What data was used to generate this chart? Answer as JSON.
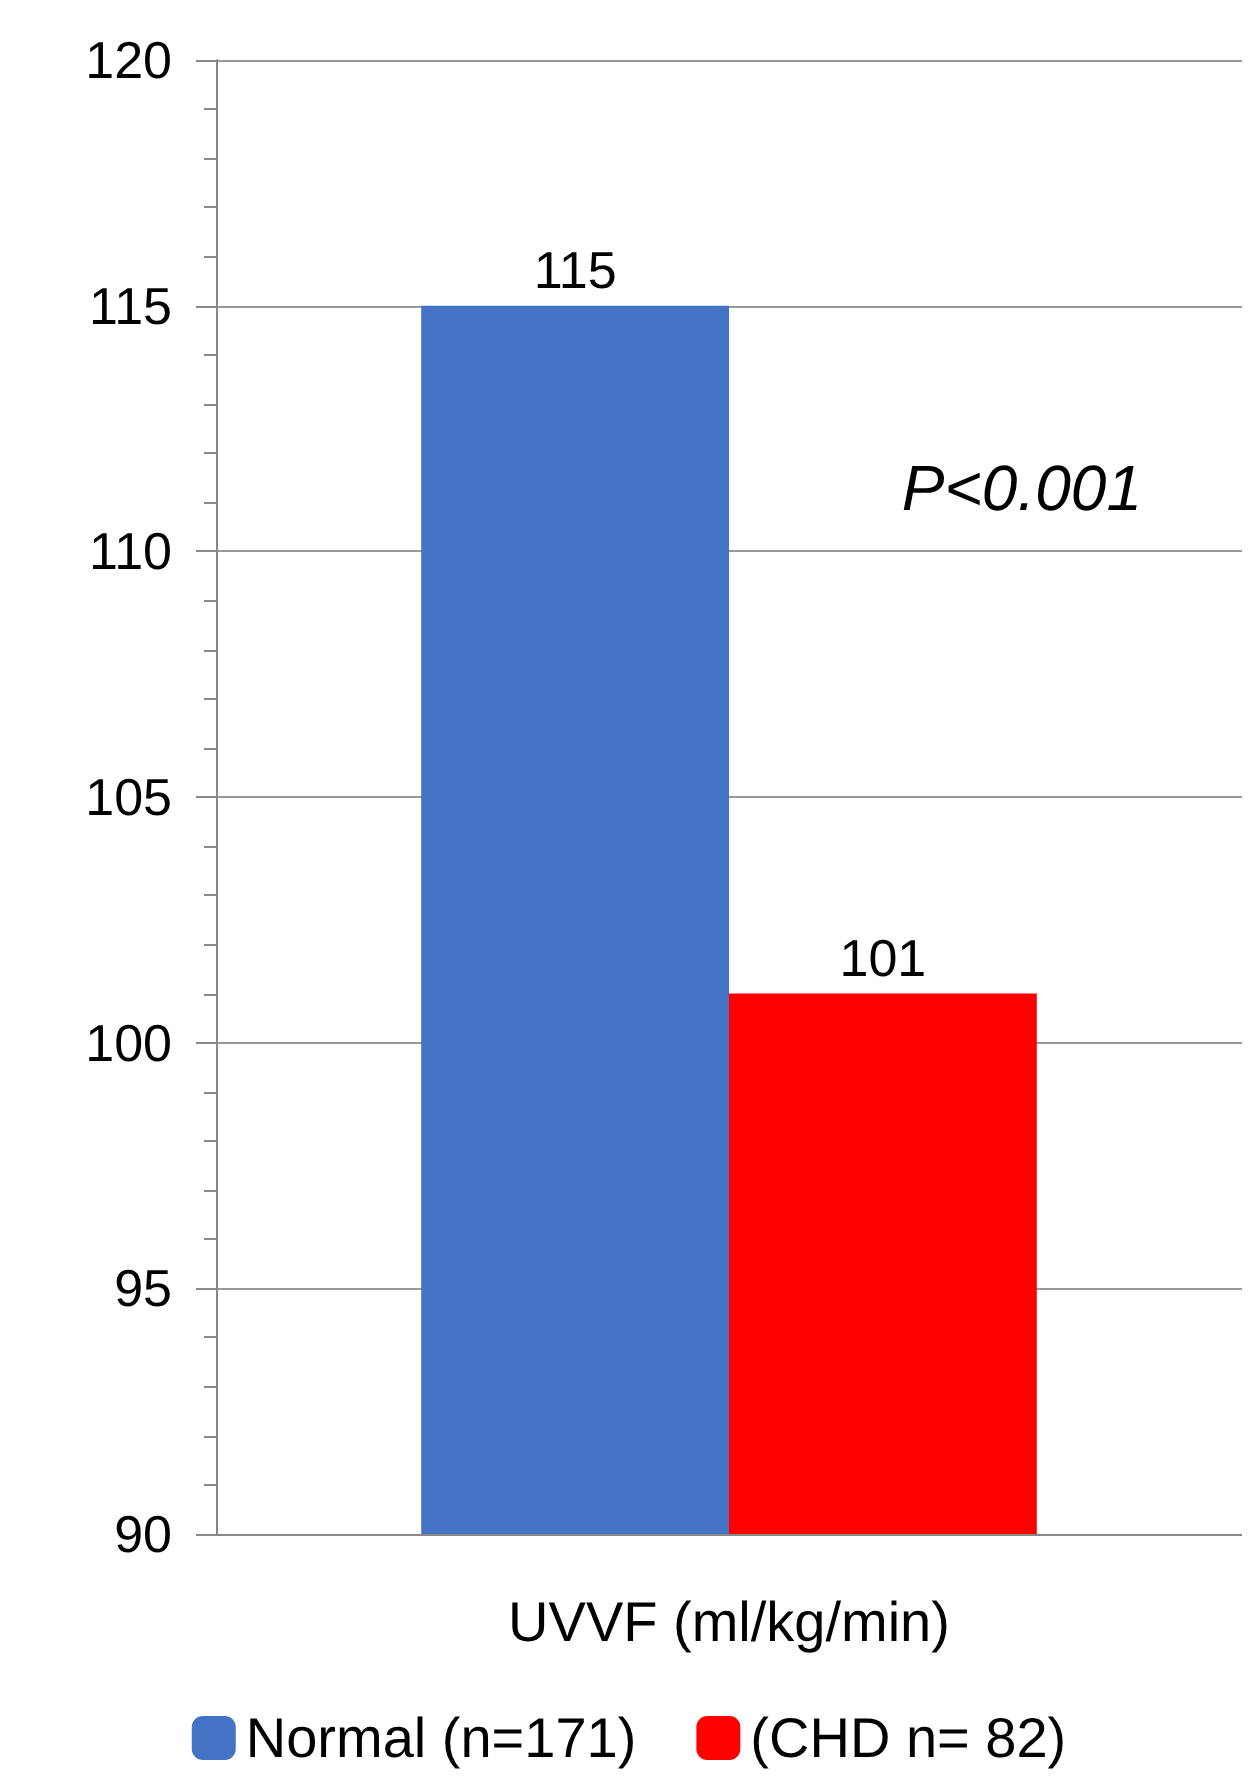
{
  "chart_data": {
    "type": "bar",
    "xlabel": "UVVF (ml/kg/min)",
    "categories": [
      null
    ],
    "series": [
      {
        "name": "Normal (n=171)",
        "color": "#4472c4",
        "values": [
          115
        ]
      },
      {
        "name": "(CHD n= 82)",
        "color": "#ff0000",
        "values": [
          101
        ]
      }
    ],
    "ylim": [
      90,
      120
    ],
    "yticks": [
      90,
      95,
      100,
      105,
      110,
      115,
      120
    ],
    "grid": "y",
    "legend": "bottom",
    "data_labels": true,
    "annotations": [
      "P<0.001"
    ]
  }
}
